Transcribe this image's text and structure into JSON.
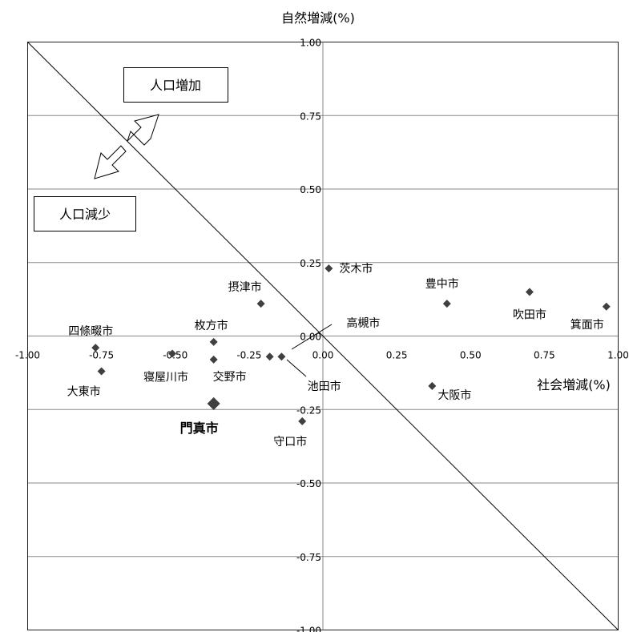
{
  "chart_data": {
    "type": "scatter",
    "xlabel": "社会増減(%)",
    "ylabel": "自然増減(%)",
    "xlim": [
      -1.0,
      1.0
    ],
    "ylim": [
      -1.0,
      1.0
    ],
    "grid": "horizontal",
    "x_ticks": [
      "-1.00",
      "-0.75",
      "-0.50",
      "-0.25",
      "0.00",
      "0.25",
      "0.50",
      "0.75",
      "1.00"
    ],
    "y_ticks": [
      "1.00",
      "0.75",
      "0.50",
      "0.25",
      "0.00",
      "-0.25",
      "-0.50",
      "-0.75",
      "-1.00"
    ],
    "x_tick_values": [
      -1.0,
      -0.75,
      -0.5,
      -0.25,
      0,
      0.25,
      0.5,
      0.75,
      1.0
    ],
    "y_tick_values": [
      1.0,
      0.75,
      0.5,
      0.25,
      0,
      -0.25,
      -0.5,
      -0.75,
      -1.0
    ],
    "reference_line": "y = -x",
    "points": [
      {
        "label": "四條畷市",
        "x": -0.77,
        "y": -0.04
      },
      {
        "label": "大東市",
        "x": -0.75,
        "y": -0.12
      },
      {
        "label": "寝屋川市",
        "x": -0.51,
        "y": -0.06
      },
      {
        "label": "枚方市",
        "x": -0.37,
        "y": -0.02
      },
      {
        "label": "交野市",
        "x": -0.37,
        "y": -0.08
      },
      {
        "label": "門真市",
        "x": -0.37,
        "y": -0.23,
        "highlight": true
      },
      {
        "label": "摂津市",
        "x": -0.21,
        "y": 0.11
      },
      {
        "label": "池田市",
        "x": -0.18,
        "y": -0.07
      },
      {
        "label": "高槻市",
        "x": -0.14,
        "y": -0.07
      },
      {
        "label": "守口市",
        "x": -0.07,
        "y": -0.29
      },
      {
        "label": "茨木市",
        "x": 0.02,
        "y": 0.23
      },
      {
        "label": "大阪市",
        "x": 0.37,
        "y": -0.17
      },
      {
        "label": "豊中市",
        "x": 0.42,
        "y": 0.11
      },
      {
        "label": "吹田市",
        "x": 0.7,
        "y": 0.15
      },
      {
        "label": "箕面市",
        "x": 0.96,
        "y": 0.1
      }
    ],
    "annotations": {
      "increase": "人口増加",
      "decrease": "人口減少"
    }
  }
}
